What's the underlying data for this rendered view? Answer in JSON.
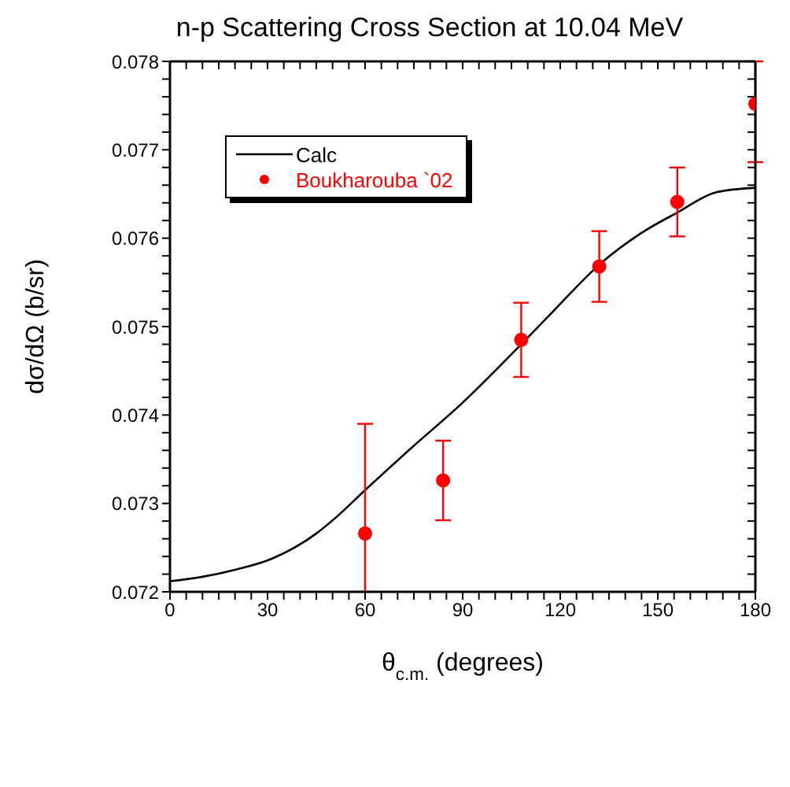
{
  "chart_data": {
    "type": "scatter",
    "title": "n-p Scattering Cross Section at 10.04 MeV",
    "xlabel": "θ$_{c.m.}$  (degrees)",
    "ylabel": "dσ/dΩ (b/sr)",
    "xlim": [
      0,
      180
    ],
    "ylim": [
      0.072,
      0.078
    ],
    "xticks": [
      0,
      {
        "value": 5,
        "label": null
      },
      {
        "value": 10,
        "label": null
      },
      {
        "value": 15,
        "label": null
      },
      {
        "value": 20,
        "label": null
      },
      {
        "value": 25,
        "label": null
      },
      30,
      {
        "value": 35,
        "label": null
      },
      {
        "value": 40,
        "label": null
      },
      {
        "value": 45,
        "label": null
      },
      {
        "value": 50,
        "label": null
      },
      {
        "value": 55,
        "label": null
      },
      60,
      {
        "value": 65,
        "label": null
      },
      {
        "value": 70,
        "label": null
      },
      {
        "value": 75,
        "label": null
      },
      {
        "value": 80,
        "label": null
      },
      {
        "value": 85,
        "label": null
      },
      90,
      {
        "value": 95,
        "label": null
      },
      {
        "value": 100,
        "label": null
      },
      {
        "value": 105,
        "label": null
      },
      {
        "value": 110,
        "label": null
      },
      {
        "value": 115,
        "label": null
      },
      120,
      {
        "value": 125,
        "label": null
      },
      {
        "value": 130,
        "label": null
      },
      {
        "value": 135,
        "label": null
      },
      {
        "value": 140,
        "label": null
      },
      {
        "value": 145,
        "label": null
      },
      150,
      {
        "value": 155,
        "label": null
      },
      {
        "value": 160,
        "label": null
      },
      {
        "value": 165,
        "label": null
      },
      {
        "value": 170,
        "label": null
      },
      {
        "value": 175,
        "label": null
      },
      180
    ],
    "yticks": [
      0.072,
      {
        "value": 0.0722,
        "label": null
      },
      {
        "value": 0.0724,
        "label": null
      },
      {
        "value": 0.0726,
        "label": null
      },
      {
        "value": 0.0728,
        "label": null
      },
      0.073,
      {
        "value": 0.0732,
        "label": null
      },
      {
        "value": 0.0734,
        "label": null
      },
      {
        "value": 0.0736,
        "label": null
      },
      {
        "value": 0.0738,
        "label": null
      },
      0.074,
      {
        "value": 0.0742,
        "label": null
      },
      {
        "value": 0.0744,
        "label": null
      },
      {
        "value": 0.0746,
        "label": null
      },
      {
        "value": 0.0748,
        "label": null
      },
      0.075,
      {
        "value": 0.0752,
        "label": null
      },
      {
        "value": 0.0754,
        "label": null
      },
      {
        "value": 0.0756,
        "label": null
      },
      {
        "value": 0.0758,
        "label": null
      },
      0.076,
      {
        "value": 0.0762,
        "label": null
      },
      {
        "value": 0.0764,
        "label": null
      },
      {
        "value": 0.0766,
        "label": null
      },
      {
        "value": 0.0768,
        "label": null
      },
      0.077,
      {
        "value": 0.0772,
        "label": null
      },
      {
        "value": 0.0774,
        "label": null
      },
      {
        "value": 0.0776,
        "label": null
      },
      {
        "value": 0.0778,
        "label": null
      },
      0.078
    ],
    "legend": "top left",
    "marker": "circle",
    "series": [
      {
        "name": "Calc",
        "type": "line",
        "color": "#000000",
        "marker": "none",
        "line_style": "solid",
        "x": [
          0,
          10,
          20,
          31,
          45,
          51,
          60,
          74,
          90,
          108,
          118,
          132,
          145,
          156,
          168,
          180
        ],
        "values": [
          0.07212,
          0.07217,
          0.07225,
          0.07237,
          0.07266,
          0.07284,
          0.07315,
          0.07362,
          0.07414,
          0.0748,
          0.07518,
          0.0757,
          0.07606,
          0.07629,
          0.07652,
          0.07657
        ]
      },
      {
        "name": "Boukharouba `02",
        "color": "#ff0000",
        "x": [
          60,
          84,
          108,
          132,
          156,
          180
        ],
        "values": [
          0.07266,
          0.07326,
          0.07485,
          0.07568,
          0.07641,
          0.07752
        ],
        "errors": [
          [
            0.072,
            0.0739
          ],
          0.00045,
          0.00042,
          0.0004,
          0.00039,
          [
            0.07686,
            0.078
          ]
        ]
      }
    ]
  }
}
